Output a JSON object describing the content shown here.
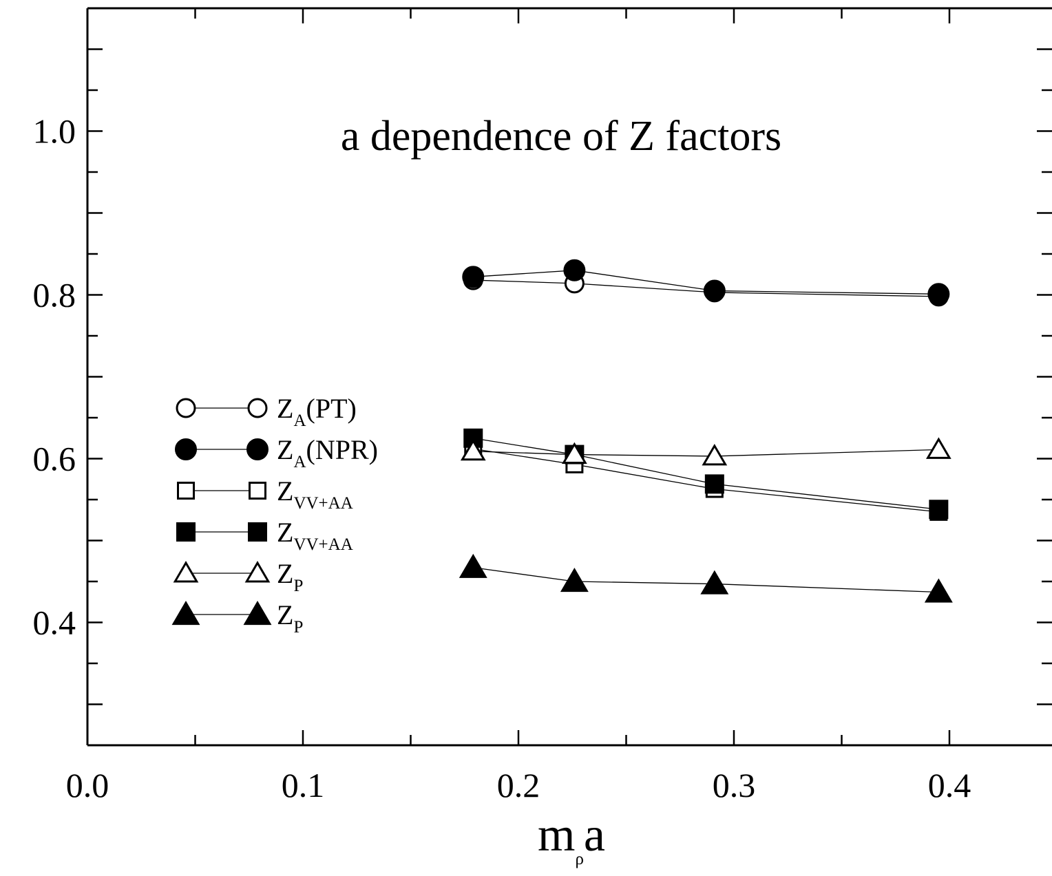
{
  "chart_data": {
    "type": "line",
    "title": "a dependence of Z factors",
    "xlabel": "m",
    "xlabel_sub": "ρ",
    "xlabel_tail": "a",
    "ylabel": "",
    "xlim": [
      0.0,
      0.45
    ],
    "ylim": [
      0.25,
      1.15
    ],
    "xticks": [
      0.0,
      0.1,
      0.2,
      0.3,
      0.4
    ],
    "xtick_labels": [
      "0.0",
      "0.1",
      "0.2",
      "0.3",
      "0.4"
    ],
    "yticks": [
      0.4,
      0.6,
      0.8,
      1.0
    ],
    "ytick_labels": [
      "0.4",
      "0.6",
      "0.8",
      "1.0"
    ],
    "grid": false,
    "legend_position": "left-middle",
    "x": [
      0.179,
      0.226,
      0.291,
      0.395
    ],
    "series": [
      {
        "name": "Z",
        "sub": "A",
        "tail": "(PT)",
        "marker": "circle",
        "filled": false,
        "values": [
          0.818,
          0.814,
          0.803,
          0.798
        ]
      },
      {
        "name": "Z",
        "sub": "A",
        "tail": "(NPR)",
        "marker": "circle",
        "filled": true,
        "values": [
          0.822,
          0.83,
          0.805,
          0.801
        ]
      },
      {
        "name": "Z",
        "sub": "VV+AA",
        "tail": "",
        "marker": "square",
        "filled": false,
        "values": [
          0.612,
          0.593,
          0.563,
          0.535
        ]
      },
      {
        "name": "Z",
        "sub": "VV+AA",
        "tail": "",
        "marker": "square",
        "filled": true,
        "values": [
          0.625,
          0.605,
          0.569,
          0.538
        ]
      },
      {
        "name": "Z",
        "sub": "P",
        "tail": "",
        "marker": "triangle",
        "filled": false,
        "values": [
          0.609,
          0.605,
          0.603,
          0.611
        ]
      },
      {
        "name": "Z",
        "sub": "P",
        "tail": "",
        "marker": "triangle",
        "filled": true,
        "values": [
          0.467,
          0.45,
          0.447,
          0.437
        ]
      }
    ]
  }
}
